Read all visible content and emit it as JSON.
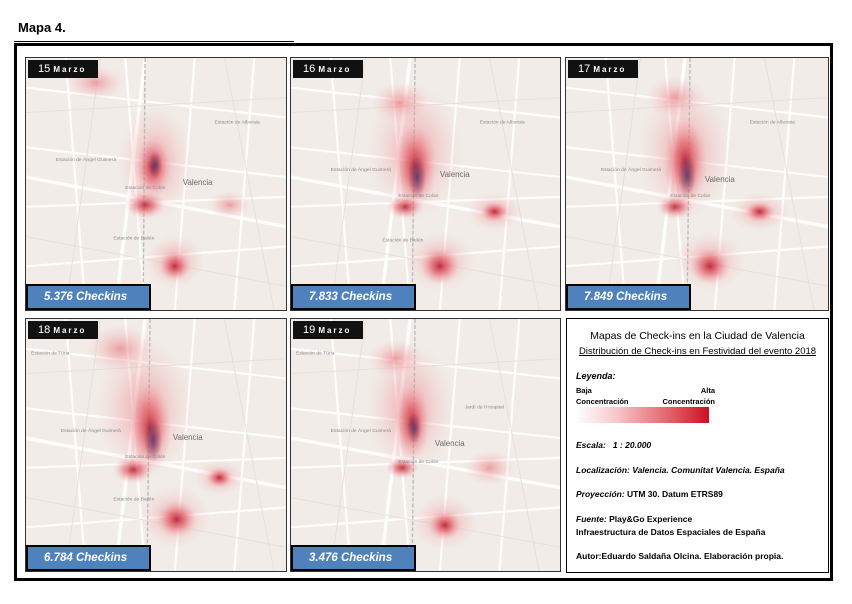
{
  "page_title": "Mapa 4.",
  "panels": [
    {
      "day": "15",
      "month": "Marzo",
      "checkins": "5.376 Checkins"
    },
    {
      "day": "16",
      "month": "Marzo",
      "checkins": "7.833 Checkins"
    },
    {
      "day": "17",
      "month": "Marzo",
      "checkins": "7.849 Checkins"
    },
    {
      "day": "18",
      "month": "Marzo",
      "checkins": "6.784 Checkins"
    },
    {
      "day": "19",
      "month": "Marzo",
      "checkins": "3.476 Checkins"
    }
  ],
  "map_labels": [
    "Valencia",
    "Estación de Alboraia",
    "Estación de Facultats",
    "Estación de Àngel Guimerà",
    "Estación de Xàtiva",
    "Estación de Colón",
    "Estación de Bailén",
    "Jardí de l'Hospital",
    "Estación de Túria"
  ],
  "legend": {
    "title": "Mapas de Check-ins en la Ciudad de Valencia",
    "subtitle": "Distribución de Check-ins en Festividad del evento 2018",
    "legend_label": "Leyenda:",
    "low_line1": "Baja",
    "low_line2": "Concentración",
    "high_line1": "Alta",
    "high_line2": "Concentración",
    "ramp_colors": [
      "#ffffff",
      "#f5c9cc",
      "#e4616b",
      "#cc1122"
    ],
    "scale_label": "Escala:",
    "scale_value": "1 : 20.000",
    "location_label": "Localización:",
    "location_value": "Valencia. Comunitat Valencia. España",
    "projection_label": "Proyección:",
    "projection_value": "UTM 30. Datum ETRS89",
    "source_label": "Fuente:",
    "source_value": "Play&Go Experience",
    "source_value2": "Infraestructura de Datos Espaciales de España",
    "author_text": "Autor:Eduardo Saldaña Olcina. Elaboración propia."
  }
}
